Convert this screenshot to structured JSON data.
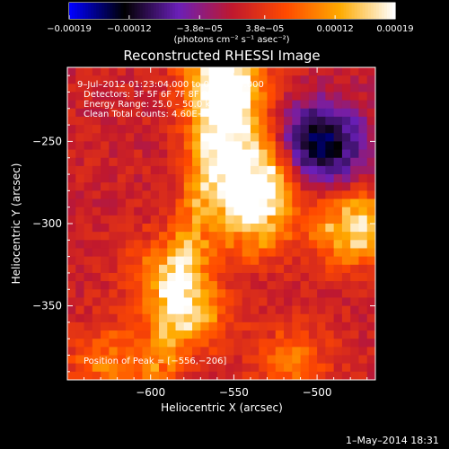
{
  "chart_data": {
    "type": "heatmap",
    "title": "Reconstructed RHESSI Image",
    "xlabel": "Heliocentric X (arcsec)",
    "ylabel": "Heliocentric Y (arcsec)",
    "xlim": [
      -650,
      -465
    ],
    "ylim": [
      -395,
      -205
    ],
    "x_ticks": [
      -600,
      -550,
      -500
    ],
    "x_tick_labels": [
      "−600",
      "−550",
      "−500"
    ],
    "y_ticks": [
      -250,
      -300,
      -350
    ],
    "y_tick_labels": [
      "−250",
      "−300",
      "−350"
    ],
    "colorbar": {
      "range": [
        -0.00019,
        0.00019
      ],
      "ticks": [
        -0.00019,
        -0.00012,
        -3.8e-05,
        3.8e-05,
        0.00012,
        0.00019
      ],
      "tick_labels": [
        "−0.00019",
        "−0.00012",
        "−3.8e−05",
        "3.8e−05",
        "0.00012",
        "0.00019"
      ],
      "units": "(photons cm⁻² s⁻¹ asec⁻²)",
      "colors": [
        "#0000ff",
        "#000000",
        "#6a1fb8",
        "#c0182e",
        "#ff4a00",
        "#ffaa00",
        "#ffffff"
      ]
    },
    "overlay_text": [
      "9–Jul–2012 01:23:04.000 to 01:27:10.000",
      "Detectors: 3F 5F 6F 7F 8F 9F, Att 0",
      "Energy Range: 25.0 – 50.0 keV",
      "Clean     Total counts: 4.60E+03"
    ],
    "peak_label": "Position of Peak = [−556,−206]",
    "peak": [
      -556,
      -206
    ],
    "hot_sources": [
      {
        "x": -556,
        "y": -210,
        "value": 0.00019
      },
      {
        "x": -552,
        "y": -240,
        "value": 0.00015
      },
      {
        "x": -545,
        "y": -272,
        "value": 0.00014
      },
      {
        "x": -540,
        "y": -300,
        "value": 0.00012
      },
      {
        "x": -532,
        "y": -276,
        "value": 0.00011
      },
      {
        "x": -478,
        "y": -303,
        "value": 0.00017
      },
      {
        "x": -590,
        "y": -330,
        "value": 0.0001
      },
      {
        "x": -575,
        "y": -355,
        "value": 0.00011
      },
      {
        "x": -625,
        "y": -385,
        "value": 9e-05
      },
      {
        "x": -515,
        "y": -385,
        "value": 8e-05
      }
    ],
    "cold_sources": [
      {
        "x": -498,
        "y": -252,
        "value": -0.00016
      }
    ],
    "footer_date": "1–May–2014 18:31"
  }
}
